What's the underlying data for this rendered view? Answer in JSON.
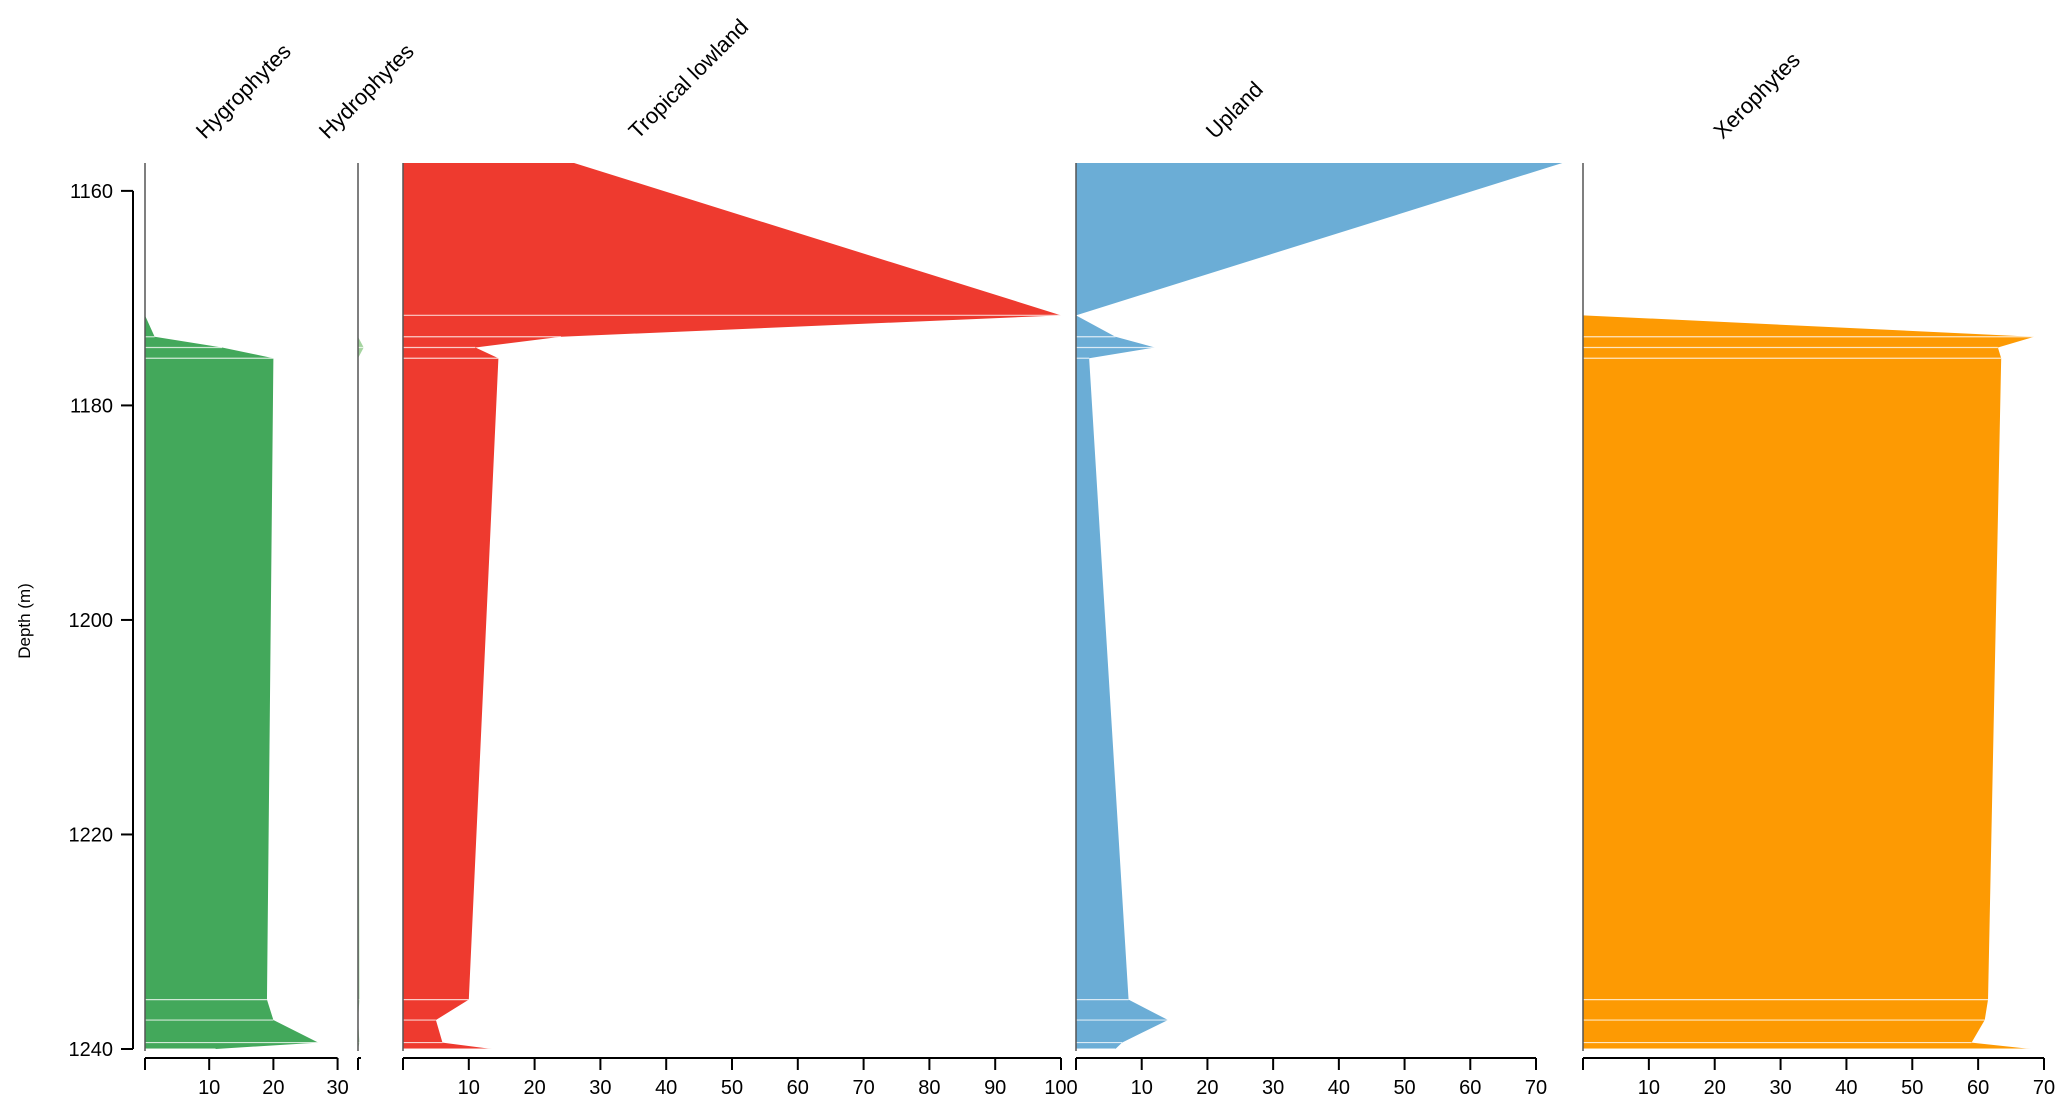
{
  "chart_data": {
    "type": "area",
    "ylabel": "Depth (m)",
    "ylim": [
      1240,
      1157.4
    ],
    "yticks": [
      1160,
      1180,
      1200,
      1220,
      1240
    ],
    "depths": [
      1157.4,
      1171.6,
      1173.6,
      1174.6,
      1175.6,
      1235.4,
      1237.3,
      1239.4,
      1240.0
    ],
    "series": [
      {
        "name": "Hygrophytes",
        "color": "#43a85b",
        "xlim": [
          0,
          31
        ],
        "xticks": [
          10,
          20,
          30
        ],
        "values": [
          0,
          0,
          1.5,
          12,
          20,
          19,
          20,
          27,
          11
        ]
      },
      {
        "name": "Hydrophytes",
        "color": "#a5d4a0",
        "xlim": [
          0,
          7
        ],
        "xticks": [],
        "values": [
          0,
          0,
          0,
          4,
          0,
          1,
          0,
          1,
          0
        ]
      },
      {
        "name": "Tropical lowland",
        "color": "#ee3a2f",
        "xlim": [
          0,
          100
        ],
        "xticks": [
          10,
          20,
          30,
          40,
          50,
          60,
          70,
          80,
          90,
          100
        ],
        "values": [
          26,
          100,
          24,
          11,
          14.5,
          10,
          5,
          6,
          13.5
        ]
      },
      {
        "name": "Upland",
        "color": "#6badd6",
        "xlim": [
          0,
          70
        ],
        "xticks": [
          10,
          20,
          30,
          40,
          50,
          60,
          70
        ],
        "values": [
          74,
          0,
          6,
          12,
          2,
          8,
          14,
          7,
          6
        ]
      },
      {
        "name": "Xerophytes",
        "color": "#fd9a03",
        "xlim": [
          0,
          70
        ],
        "xticks": [
          10,
          20,
          30,
          40,
          50,
          60,
          70
        ],
        "values": [
          0,
          0,
          68.5,
          63,
          63.5,
          61.5,
          61,
          59,
          68
        ]
      }
    ]
  }
}
